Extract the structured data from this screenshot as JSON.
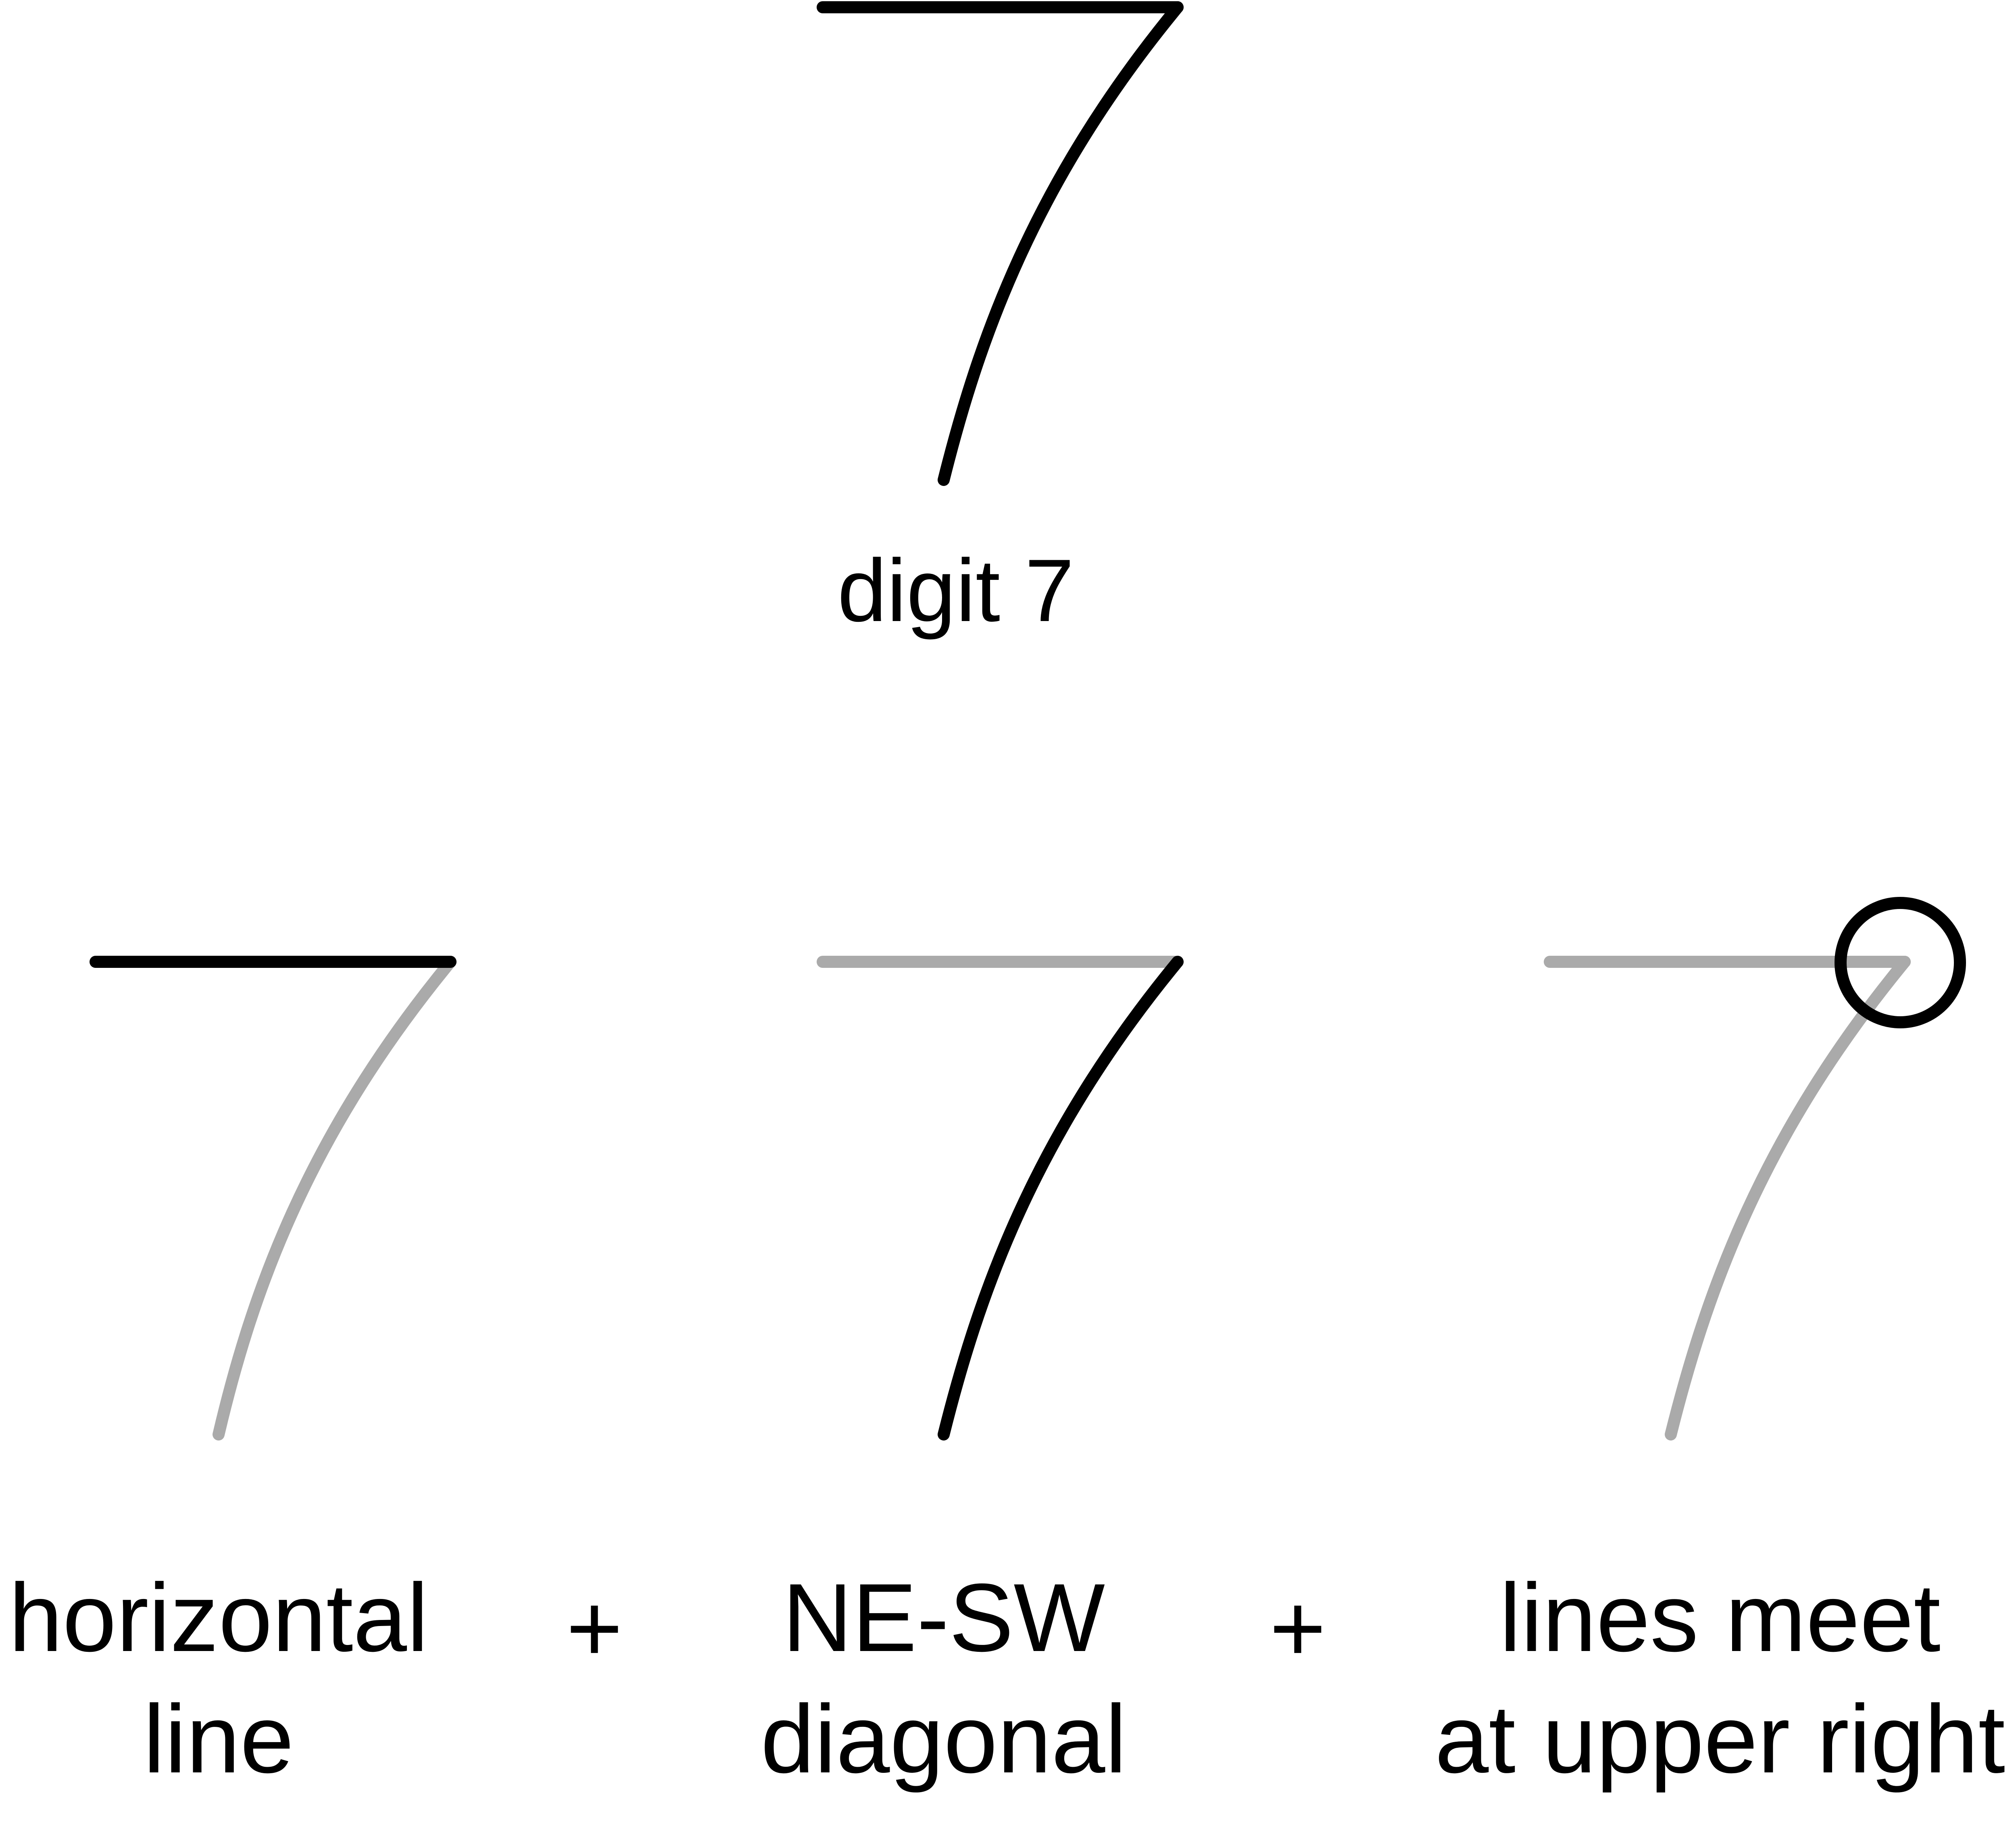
{
  "colors": {
    "background": "#ffffff",
    "stroke_active": "#000000",
    "stroke_muted": "#aaaaaa",
    "text": "#000000"
  },
  "top": {
    "label": "digit 7"
  },
  "components": [
    {
      "label_line1": "horizontal",
      "label_line2": "line",
      "highlight": "horizontal"
    },
    {
      "label_line1": "NE-SW",
      "label_line2": "diagonal",
      "highlight": "diagonal"
    },
    {
      "label_line1": "lines meet",
      "label_line2": "at upper right",
      "highlight": "junction"
    }
  ],
  "operators": [
    "+",
    "+"
  ]
}
